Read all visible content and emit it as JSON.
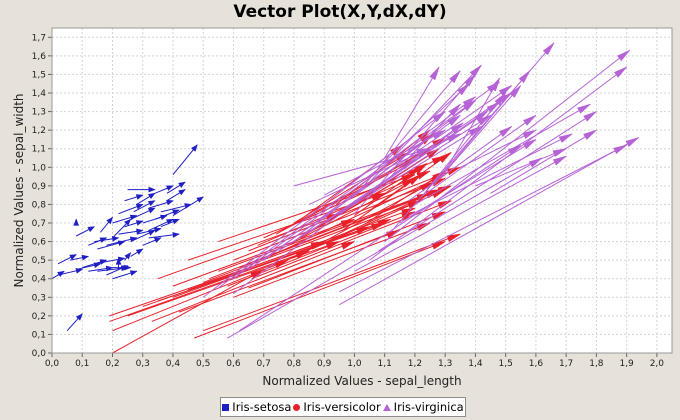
{
  "chart_data": {
    "type": "vector",
    "title": "Vector Plot(X,Y,dX,dY)",
    "xlabel": "Normalized Values - sepal_length",
    "ylabel": "Normalized Values - sepal_width",
    "xlim": [
      0.0,
      2.05
    ],
    "ylim": [
      0.0,
      1.75
    ],
    "xticks": [
      "0,0",
      "0,1",
      "0,2",
      "0,3",
      "0,4",
      "0,5",
      "0,6",
      "0,7",
      "0,8",
      "0,9",
      "1,0",
      "1,1",
      "1,2",
      "1,3",
      "1,4",
      "1,5",
      "1,6",
      "1,7",
      "1,8",
      "1,9",
      "2,0"
    ],
    "yticks": [
      "0,0",
      "0,1",
      "0,2",
      "0,3",
      "0,4",
      "0,5",
      "0,6",
      "0,7",
      "0,8",
      "0,9",
      "1,0",
      "1,1",
      "1,2",
      "1,3",
      "1,4",
      "1,5",
      "1,6",
      "1,7"
    ],
    "grid": true,
    "legend_position": "bottom",
    "series": [
      {
        "name": "Iris-setosa",
        "color": "#1f1fc4",
        "vectors": [
          [
            0.05,
            0.12,
            0.1,
            0.21
          ],
          [
            0.0,
            0.4,
            0.04,
            0.44
          ],
          [
            0.02,
            0.42,
            0.1,
            0.45
          ],
          [
            0.02,
            0.48,
            0.08,
            0.53
          ],
          [
            0.06,
            0.5,
            0.12,
            0.52
          ],
          [
            0.08,
            0.45,
            0.16,
            0.48
          ],
          [
            0.1,
            0.46,
            0.18,
            0.5
          ],
          [
            0.12,
            0.44,
            0.2,
            0.46
          ],
          [
            0.14,
            0.48,
            0.24,
            0.51
          ],
          [
            0.15,
            0.44,
            0.25,
            0.46
          ],
          [
            0.18,
            0.42,
            0.25,
            0.47
          ],
          [
            0.2,
            0.46,
            0.26,
            0.46
          ],
          [
            0.2,
            0.4,
            0.28,
            0.44
          ],
          [
            0.22,
            0.45,
            0.22,
            0.51
          ],
          [
            0.24,
            0.5,
            0.26,
            0.54
          ],
          [
            0.26,
            0.52,
            0.3,
            0.56
          ],
          [
            0.08,
            0.63,
            0.14,
            0.68
          ],
          [
            0.08,
            0.7,
            0.08,
            0.72
          ],
          [
            0.12,
            0.58,
            0.18,
            0.62
          ],
          [
            0.14,
            0.6,
            0.22,
            0.62
          ],
          [
            0.15,
            0.56,
            0.24,
            0.6
          ],
          [
            0.16,
            0.65,
            0.2,
            0.73
          ],
          [
            0.18,
            0.58,
            0.28,
            0.62
          ],
          [
            0.2,
            0.62,
            0.26,
            0.72
          ],
          [
            0.2,
            0.7,
            0.28,
            0.74
          ],
          [
            0.22,
            0.64,
            0.3,
            0.66
          ],
          [
            0.22,
            0.75,
            0.3,
            0.8
          ],
          [
            0.24,
            0.68,
            0.3,
            0.71
          ],
          [
            0.24,
            0.82,
            0.3,
            0.85
          ],
          [
            0.25,
            0.88,
            0.34,
            0.88
          ],
          [
            0.26,
            0.6,
            0.34,
            0.66
          ],
          [
            0.26,
            0.72,
            0.34,
            0.78
          ],
          [
            0.27,
            0.76,
            0.34,
            0.82
          ],
          [
            0.28,
            0.8,
            0.34,
            0.86
          ],
          [
            0.28,
            0.64,
            0.36,
            0.67
          ],
          [
            0.3,
            0.58,
            0.36,
            0.62
          ],
          [
            0.3,
            0.7,
            0.38,
            0.74
          ],
          [
            0.32,
            0.62,
            0.42,
            0.64
          ],
          [
            0.32,
            0.66,
            0.4,
            0.72
          ],
          [
            0.32,
            0.78,
            0.4,
            0.82
          ],
          [
            0.34,
            0.72,
            0.42,
            0.77
          ],
          [
            0.34,
            0.86,
            0.4,
            0.9
          ],
          [
            0.36,
            0.68,
            0.42,
            0.72
          ],
          [
            0.36,
            0.76,
            0.46,
            0.8
          ],
          [
            0.38,
            0.82,
            0.44,
            0.88
          ],
          [
            0.38,
            0.86,
            0.44,
            0.92
          ],
          [
            0.4,
            0.74,
            0.5,
            0.84
          ],
          [
            0.4,
            0.96,
            0.48,
            1.12
          ]
        ]
      },
      {
        "name": "Iris-versicolor",
        "color": "#e8202a",
        "vectors": [
          [
            0.2,
            0.0,
            0.7,
            0.45
          ],
          [
            0.19,
            0.2,
            0.9,
            0.6
          ],
          [
            0.19,
            0.17,
            0.85,
            0.55
          ],
          [
            0.2,
            0.12,
            0.78,
            0.5
          ],
          [
            0.25,
            0.2,
            0.95,
            0.6
          ],
          [
            0.3,
            0.25,
            1.05,
            0.68
          ],
          [
            0.33,
            0.17,
            1.0,
            0.6
          ],
          [
            0.35,
            0.28,
            1.1,
            0.7
          ],
          [
            0.4,
            0.3,
            1.12,
            0.72
          ],
          [
            0.42,
            0.22,
            1.15,
            0.66
          ],
          [
            0.45,
            0.34,
            1.2,
            0.78
          ],
          [
            0.47,
            0.08,
            1.3,
            0.6
          ],
          [
            0.5,
            0.12,
            1.35,
            0.64
          ],
          [
            0.5,
            0.38,
            1.22,
            0.82
          ],
          [
            0.52,
            0.4,
            1.25,
            0.86
          ],
          [
            0.55,
            0.44,
            1.28,
            0.88
          ],
          [
            0.58,
            0.36,
            1.2,
            0.76
          ],
          [
            0.6,
            0.5,
            1.3,
            0.94
          ],
          [
            0.62,
            0.46,
            1.32,
            0.9
          ],
          [
            0.65,
            0.55,
            1.35,
            1.0
          ],
          [
            0.66,
            0.4,
            1.32,
            0.82
          ],
          [
            0.68,
            0.58,
            1.25,
            0.98
          ],
          [
            0.7,
            0.62,
            1.3,
            1.06
          ],
          [
            0.72,
            0.52,
            1.3,
            0.96
          ],
          [
            0.74,
            0.64,
            1.2,
            1.04
          ],
          [
            0.75,
            0.48,
            1.28,
            0.88
          ],
          [
            0.76,
            0.66,
            1.25,
            1.1
          ],
          [
            0.78,
            0.58,
            1.2,
            0.94
          ],
          [
            0.8,
            0.7,
            1.18,
            1.08
          ],
          [
            0.82,
            0.62,
            1.22,
            1.0
          ],
          [
            0.84,
            0.74,
            1.16,
            1.12
          ],
          [
            0.86,
            0.56,
            1.3,
            0.88
          ],
          [
            0.88,
            0.68,
            1.24,
            1.02
          ],
          [
            0.9,
            0.6,
            1.26,
            0.92
          ],
          [
            0.92,
            0.72,
            1.28,
            1.1
          ],
          [
            0.94,
            0.8,
            1.25,
            1.2
          ],
          [
            0.96,
            0.66,
            1.22,
            0.96
          ],
          [
            0.98,
            0.84,
            1.3,
            1.16
          ],
          [
            1.0,
            0.74,
            1.24,
            1.02
          ],
          [
            1.02,
            0.88,
            1.26,
            1.18
          ],
          [
            1.04,
            0.7,
            1.3,
            0.98
          ],
          [
            1.06,
            0.78,
            1.32,
            1.08
          ],
          [
            0.35,
            0.4,
            0.95,
            0.75
          ],
          [
            0.4,
            0.36,
            1.0,
            0.72
          ],
          [
            0.45,
            0.5,
            1.1,
            0.86
          ],
          [
            0.55,
            0.6,
            1.2,
            0.96
          ],
          [
            0.6,
            0.3,
            1.25,
            0.7
          ],
          [
            0.65,
            0.35,
            1.3,
            0.76
          ]
        ]
      },
      {
        "name": "Iris-virginica",
        "color": "#b663d6",
        "vectors": [
          [
            0.95,
            0.26,
            1.94,
            1.16
          ],
          [
            0.95,
            0.33,
            1.9,
            1.12
          ],
          [
            1.0,
            0.44,
            1.7,
            1.06
          ],
          [
            1.05,
            0.5,
            1.9,
            1.54
          ],
          [
            1.08,
            0.55,
            1.8,
            1.3
          ],
          [
            1.1,
            0.6,
            1.91,
            1.63
          ],
          [
            1.12,
            0.65,
            1.66,
            1.67
          ],
          [
            1.15,
            0.7,
            1.6,
            1.15
          ],
          [
            1.18,
            0.74,
            1.72,
            1.18
          ],
          [
            1.2,
            0.8,
            1.78,
            1.34
          ],
          [
            1.22,
            0.84,
            1.6,
            1.28
          ],
          [
            1.24,
            0.88,
            1.5,
            1.4
          ],
          [
            1.26,
            0.9,
            1.55,
            1.44
          ],
          [
            1.28,
            0.94,
            1.58,
            1.52
          ],
          [
            1.3,
            0.98,
            1.48,
            1.48
          ],
          [
            1.0,
            0.75,
            1.4,
            1.5
          ],
          [
            1.02,
            0.88,
            1.35,
            1.52
          ],
          [
            1.05,
            0.92,
            1.42,
            1.55
          ],
          [
            1.08,
            1.0,
            1.38,
            1.45
          ],
          [
            1.1,
            1.05,
            1.28,
            1.54
          ],
          [
            1.12,
            0.95,
            1.35,
            1.34
          ],
          [
            1.15,
            1.0,
            1.52,
            1.4
          ],
          [
            1.18,
            0.82,
            1.52,
            1.22
          ],
          [
            0.5,
            0.3,
            1.3,
            1.3
          ],
          [
            0.55,
            0.35,
            1.4,
            1.38
          ],
          [
            0.6,
            0.4,
            1.48,
            1.46
          ],
          [
            0.65,
            0.45,
            1.52,
            1.44
          ],
          [
            0.7,
            0.5,
            1.35,
            1.28
          ],
          [
            0.75,
            0.55,
            1.45,
            1.28
          ],
          [
            0.8,
            0.6,
            1.4,
            1.36
          ],
          [
            0.85,
            0.65,
            1.48,
            1.35
          ],
          [
            0.9,
            0.7,
            1.44,
            1.3
          ],
          [
            0.95,
            0.75,
            1.42,
            1.22
          ],
          [
            0.85,
            0.8,
            1.35,
            1.18
          ],
          [
            0.9,
            0.85,
            1.3,
            1.2
          ],
          [
            0.8,
            0.9,
            1.25,
            1.1
          ],
          [
            0.6,
            0.32,
            1.36,
            1.24
          ],
          [
            0.62,
            0.12,
            1.55,
            1.12
          ],
          [
            0.58,
            0.08,
            1.62,
            1.05
          ],
          [
            1.35,
            1.0,
            1.6,
            1.2
          ],
          [
            1.4,
            0.9,
            1.7,
            1.1
          ],
          [
            1.45,
            0.86,
            1.8,
            1.2
          ]
        ]
      }
    ]
  },
  "legend": {
    "items": [
      {
        "label": "Iris-setosa",
        "shape": "square",
        "color": "#1f1fc4"
      },
      {
        "label": "Iris-versicolor",
        "shape": "circle",
        "color": "#e8202a"
      },
      {
        "label": "Iris-virginica",
        "shape": "triangle",
        "color": "#b663d6"
      }
    ]
  }
}
